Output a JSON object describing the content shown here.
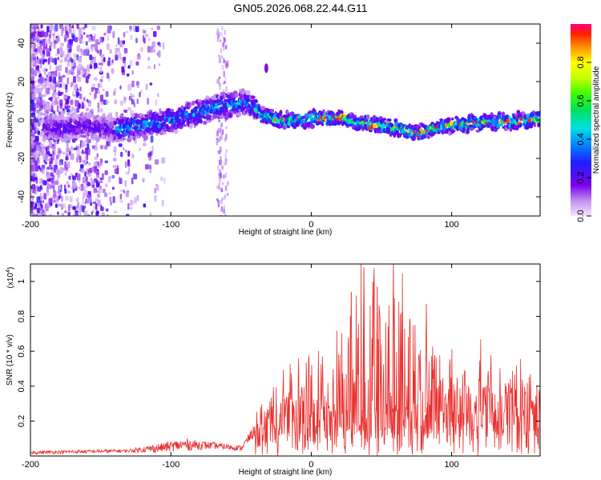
{
  "title": "GN05.2026.068.22.44.G11",
  "chart_data": [
    {
      "type": "heatmap",
      "name": "spectrogram",
      "xlabel": "Height of straight line (km)",
      "ylabel": "Frequency (Hz)",
      "xlim": [
        -200,
        163
      ],
      "ylim": [
        -50,
        50
      ],
      "xticks": [
        -200,
        -100,
        0,
        100
      ],
      "yticks": [
        -40,
        -20,
        0,
        20,
        40
      ],
      "colorbar": {
        "label": "Normalized spectral amplitude",
        "range": [
          0,
          1
        ],
        "ticks": [
          "0.0",
          "0.2",
          "0.4",
          "0.6",
          "0.8"
        ]
      },
      "ridge": {
        "x": [
          -200,
          -180,
          -160,
          -140,
          -120,
          -100,
          -80,
          -60,
          -45,
          -35,
          -25,
          -10,
          0,
          20,
          40,
          60,
          75,
          90,
          110,
          130,
          150,
          163
        ],
        "y": [
          -3,
          -4,
          -3,
          -5,
          -3,
          0,
          4,
          8,
          9,
          3,
          0,
          0,
          1,
          1,
          -2,
          -4,
          -7,
          -4,
          -2,
          -1,
          0,
          0
        ]
      }
    },
    {
      "type": "line",
      "name": "snr",
      "xlabel": "Height of straight line (km)",
      "ylabel": "SNR (10 * v/v)",
      "yscale_label": "(x10",
      "yscale_exp": "4",
      "yscale_close": ")",
      "xlim": [
        -200,
        163
      ],
      "ylim": [
        0,
        1.1
      ],
      "xticks": [
        -200,
        -100,
        0,
        100
      ],
      "yticks": [
        0.2,
        0.4,
        0.6,
        0.8,
        1
      ],
      "series_color": "#e8312f",
      "envelope": {
        "x": [
          -200,
          -130,
          -110,
          -90,
          -70,
          -50,
          -35,
          -25,
          -15,
          0,
          10,
          20,
          30,
          40,
          50,
          60,
          70,
          80,
          90,
          100,
          120,
          140,
          163
        ],
        "base": [
          0.01,
          0.02,
          0.02,
          0.03,
          0.04,
          0.03,
          0.15,
          0.22,
          0.28,
          0.22,
          0.25,
          0.3,
          0.28,
          0.22,
          0.28,
          0.3,
          0.26,
          0.28,
          0.25,
          0.3,
          0.32,
          0.33,
          0.35
        ],
        "peak": [
          0.03,
          0.04,
          0.07,
          0.1,
          0.08,
          0.06,
          0.25,
          0.42,
          0.55,
          0.55,
          0.62,
          0.75,
          0.88,
          1.05,
          1.0,
          1.08,
          0.85,
          0.75,
          0.6,
          0.55,
          0.5,
          0.45,
          0.47
        ]
      },
      "highlights": [
        {
          "x": 37.5,
          "y": 1.08
        },
        {
          "x": 58.5,
          "y": 1.1
        },
        {
          "x": 28.5,
          "y": 0.94
        },
        {
          "x": 47,
          "y": 0.97
        },
        {
          "x": 82,
          "y": 0.87
        }
      ]
    }
  ]
}
